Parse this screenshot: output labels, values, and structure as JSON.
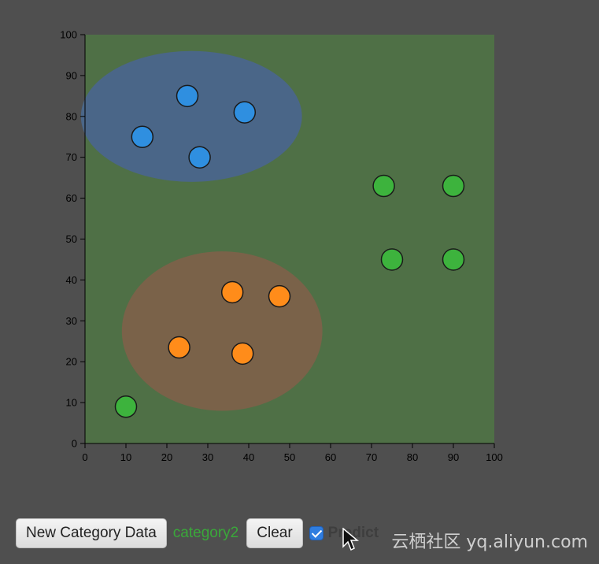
{
  "chart_data": {
    "type": "scatter",
    "xlim": [
      0,
      100
    ],
    "ylim": [
      0,
      100
    ],
    "x_ticks": [
      0,
      10,
      20,
      30,
      40,
      50,
      60,
      70,
      80,
      90,
      100
    ],
    "y_ticks": [
      0,
      10,
      20,
      30,
      40,
      50,
      60,
      70,
      80,
      90,
      100
    ],
    "grid": false,
    "background_region_color": "#4f7046",
    "prediction_regions": [
      {
        "category": "category1",
        "cx": 26,
        "cy": 80,
        "rx": 27,
        "ry": 16,
        "color": "#4a6688"
      },
      {
        "category": "category3",
        "cx": 33.5,
        "cy": 27.5,
        "rx": 24.5,
        "ry": 19.5,
        "color": "#7a6249"
      }
    ],
    "series": [
      {
        "color": "#2f8fe0",
        "points": [
          [
            14,
            75
          ],
          [
            25,
            85
          ],
          [
            28,
            70
          ],
          [
            39,
            81
          ]
        ]
      },
      {
        "color": "#3db33d",
        "points": [
          [
            10,
            9
          ],
          [
            73,
            63
          ],
          [
            75,
            45
          ],
          [
            90,
            63
          ],
          [
            90,
            45
          ]
        ]
      },
      {
        "color": "#ff8c1a",
        "points": [
          [
            23,
            23.5
          ],
          [
            36,
            37
          ],
          [
            38.5,
            22
          ],
          [
            47.5,
            36
          ]
        ]
      }
    ]
  },
  "controls": {
    "new_category_button": "New Category Data",
    "current_category": "category2",
    "current_category_color": "#3aa83a",
    "clear_button": "Clear",
    "predict_checked": true,
    "predict_label": "Predict"
  },
  "watermark": "云栖社区 yq.aliyun.com"
}
